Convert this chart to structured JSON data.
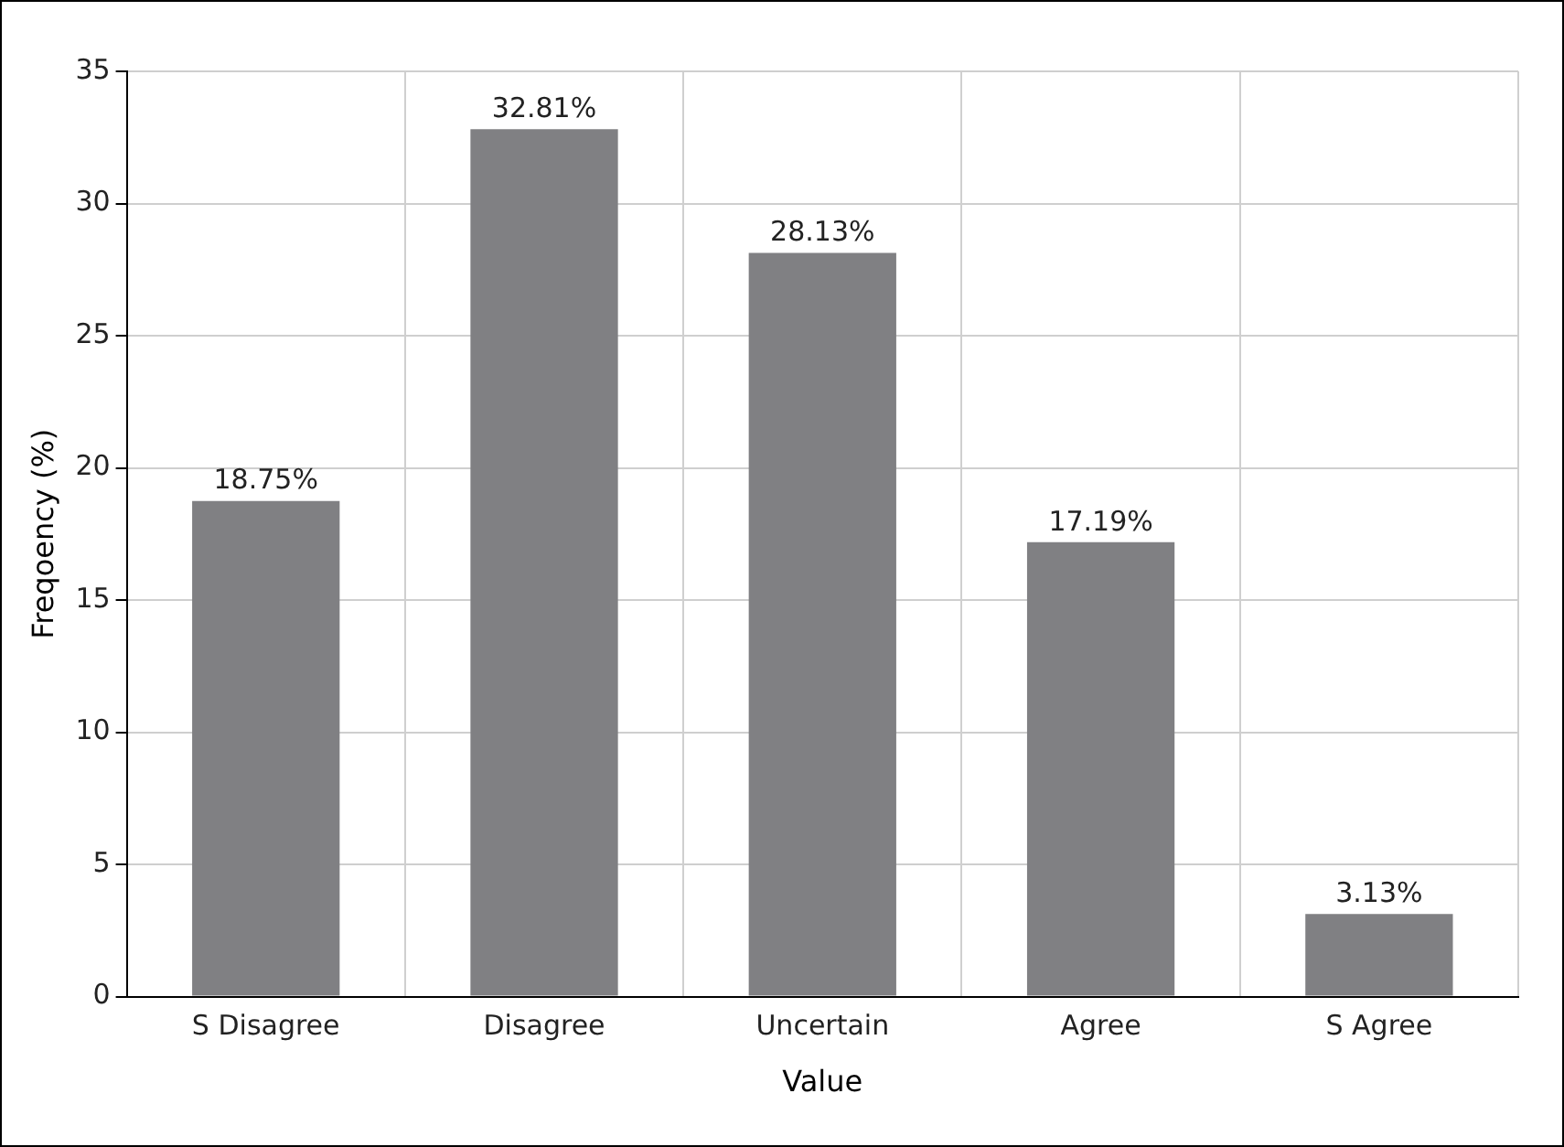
{
  "chart_data": {
    "type": "bar",
    "xlabel": "Value",
    "ylabel": "Freqoency (%)",
    "categories": [
      "S Disagree",
      "Disagree",
      "Uncertain",
      "Agree",
      "S Agree"
    ],
    "values": [
      18.75,
      32.81,
      28.13,
      17.19,
      3.13
    ],
    "value_labels": [
      "18.75%",
      "32.81%",
      "28.13%",
      "17.19%",
      "3.13%"
    ],
    "color": "#808083",
    "ylim": [
      0,
      35
    ],
    "yticks": [
      0,
      5,
      10,
      15,
      20,
      25,
      30,
      35
    ],
    "grid": true,
    "legend": false
  }
}
